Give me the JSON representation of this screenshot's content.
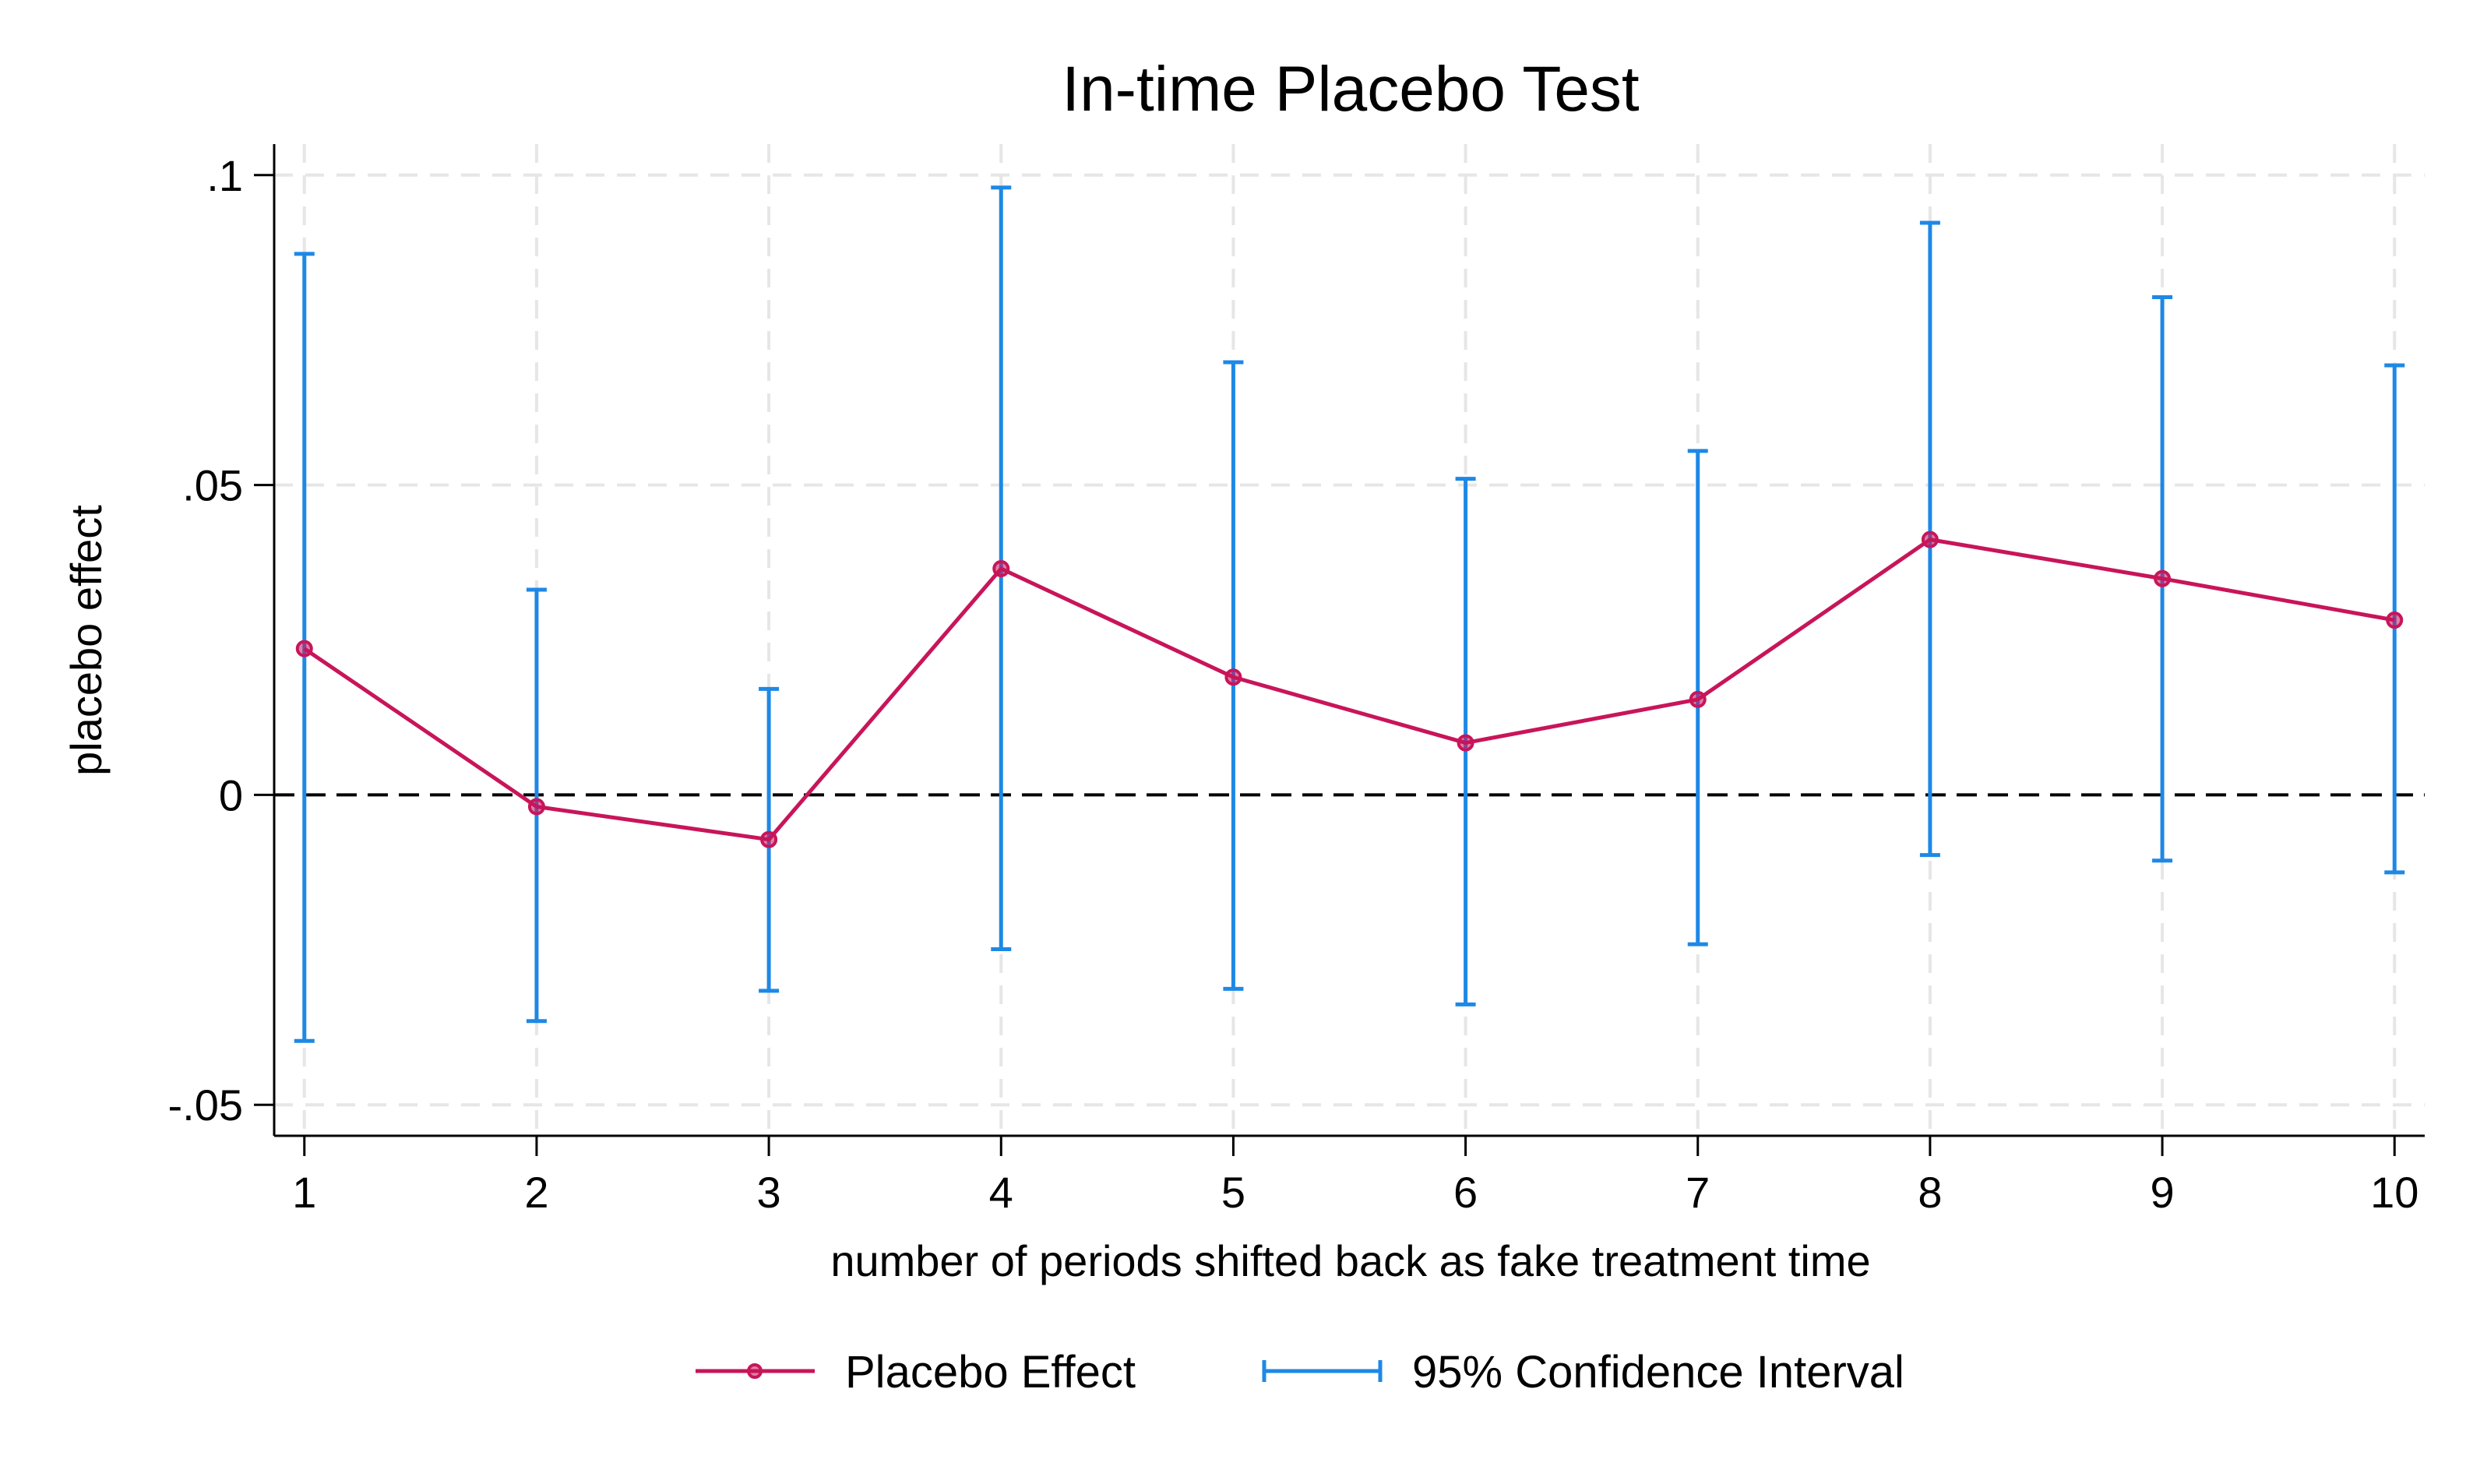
{
  "chart_data": {
    "type": "line",
    "title": "In-time Placebo Test",
    "xlabel": "number of periods shifted back as fake treatment time",
    "ylabel": "placebo effect",
    "x": [
      1,
      2,
      3,
      4,
      5,
      6,
      7,
      8,
      9,
      10
    ],
    "xticks": [
      "1",
      "2",
      "3",
      "4",
      "5",
      "6",
      "7",
      "8",
      "9",
      "10"
    ],
    "xlim": [
      0.87,
      10.13
    ],
    "ylim": [
      -0.055,
      0.105
    ],
    "yticks": [
      {
        "value": 0.1,
        "label": ".1"
      },
      {
        "value": 0.05,
        "label": ".05"
      },
      {
        "value": 0,
        "label": "0"
      },
      {
        "value": -0.05,
        "label": "-.05"
      }
    ],
    "reference_line": {
      "y": 0,
      "style": "dashed",
      "color": "#000000"
    },
    "grid": true,
    "legend_position": "bottom",
    "series": [
      {
        "name": "Placebo Effect",
        "kind": "line-markers",
        "color": "#C8155A",
        "values": [
          0.0236,
          -0.0019,
          -0.0072,
          0.0365,
          0.019,
          0.0084,
          0.0154,
          0.0412,
          0.0349,
          0.0282
        ]
      },
      {
        "name": "95% Confidence Interval",
        "kind": "error-bars",
        "color": "#1E88E5",
        "lower": [
          -0.0397,
          -0.0365,
          -0.0316,
          -0.0249,
          -0.0313,
          -0.0338,
          -0.0241,
          -0.0097,
          -0.0106,
          -0.0125
        ],
        "upper": [
          0.0873,
          0.0331,
          0.0171,
          0.098,
          0.0698,
          0.051,
          0.0555,
          0.0923,
          0.0803,
          0.0693
        ]
      }
    ]
  }
}
